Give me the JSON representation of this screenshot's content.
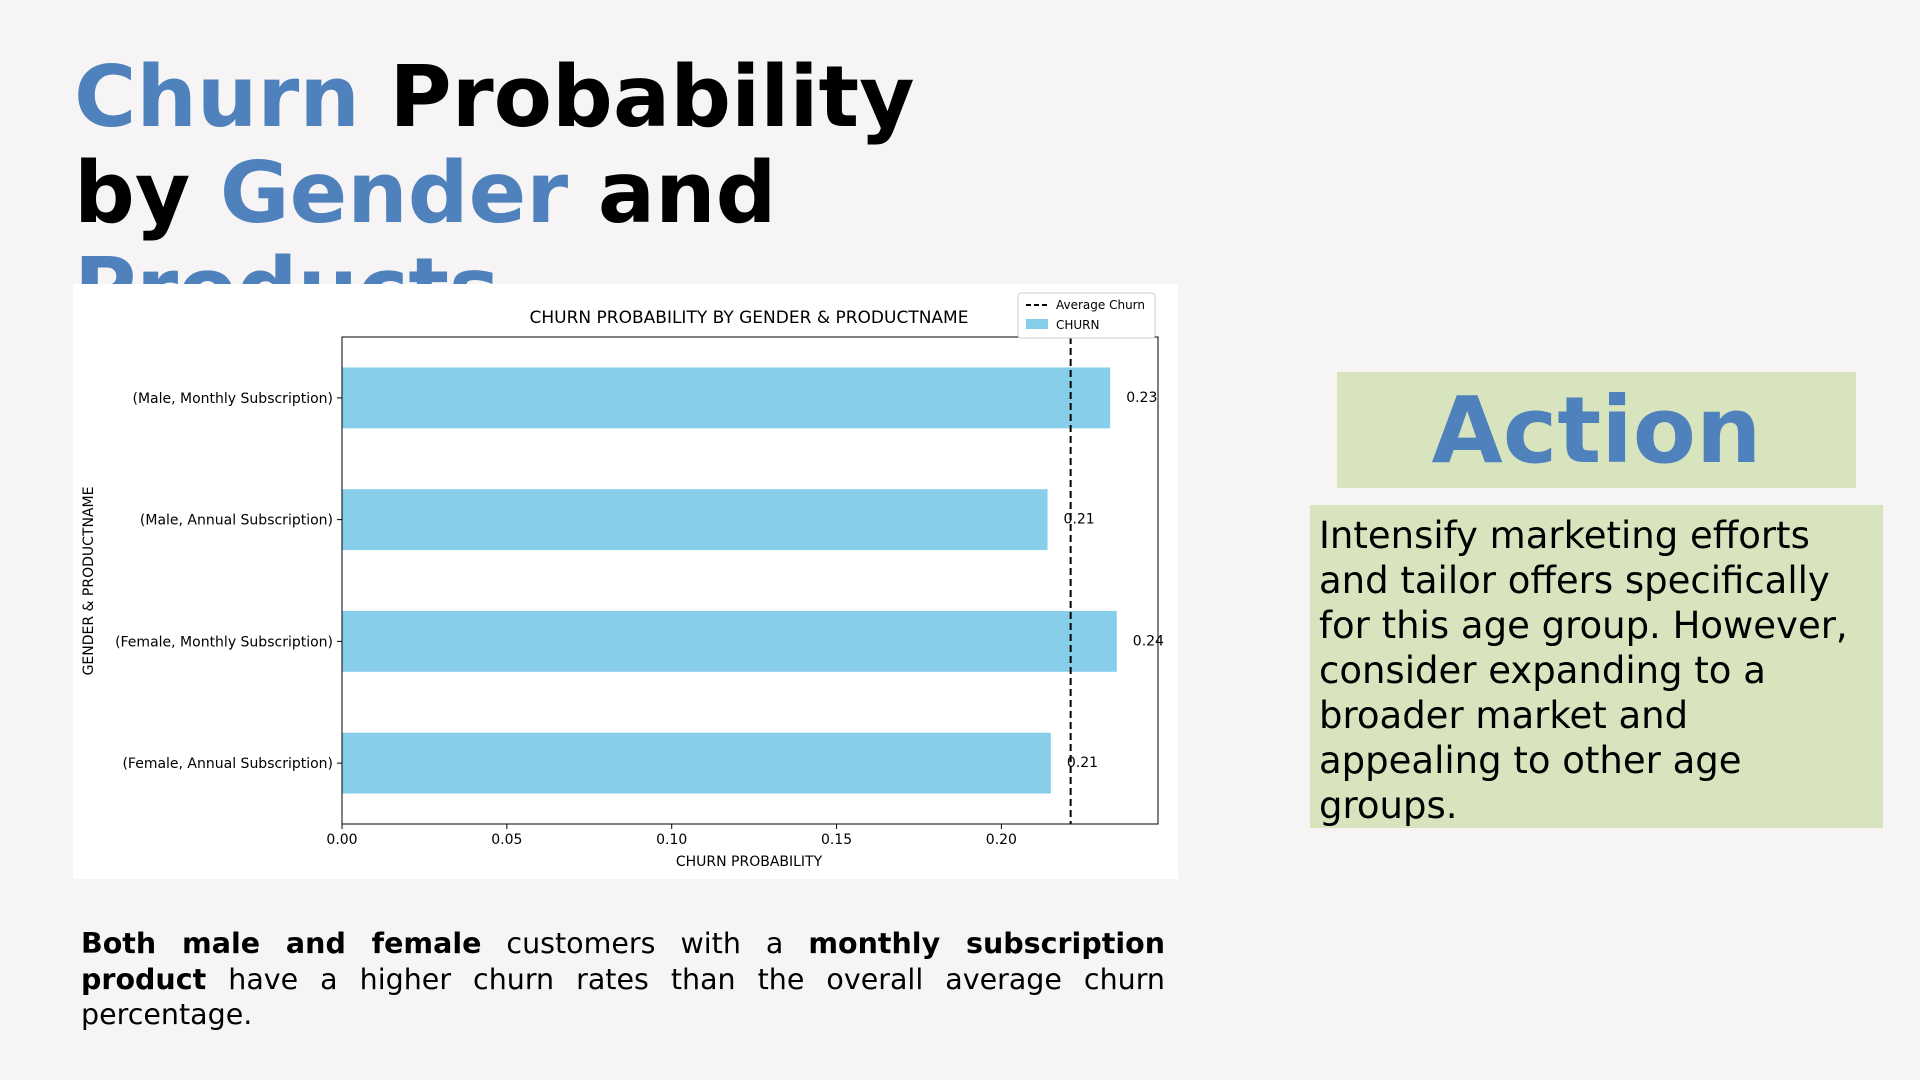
{
  "slide": {
    "title_parts": [
      {
        "text": "Churn",
        "accent": true
      },
      {
        "text": " Probability by ",
        "accent": false
      },
      {
        "text": "Gender",
        "accent": true
      },
      {
        "text": " and ",
        "accent": false
      },
      {
        "text": "Products",
        "accent": true
      }
    ],
    "accent_color": "#4f81bd",
    "summary_parts": [
      {
        "text": "Both male and female",
        "bold": true
      },
      {
        "text": " customers with a ",
        "bold": false
      },
      {
        "text": "monthly subscription product",
        "bold": true
      },
      {
        "text": " have a higher churn rates than the overall average churn percentage.",
        "bold": false
      }
    ],
    "action_title": "Action",
    "action_text": "Intensify marketing efforts and tailor offers specifically for this age group. However, consider expanding to a broader market and appealing to other age groups.",
    "action_bg_color": "#d7e4bd"
  },
  "chart_data": {
    "type": "bar",
    "orientation": "horizontal",
    "title": "CHURN PROBABILITY BY GENDER & PRODUCTNAME",
    "xlabel": "CHURN PROBABILITY",
    "ylabel": "GENDER & PRODUCTNAME",
    "categories": [
      "(Male, Monthly Subscription)",
      "(Male, Annual Subscription)",
      "(Female, Monthly Subscription)",
      "(Female, Annual Subscription)"
    ],
    "series": [
      {
        "name": "CHURN",
        "values": [
          0.233,
          0.214,
          0.235,
          0.215
        ],
        "color": "#87ceeb"
      }
    ],
    "data_labels": [
      "0.23",
      "0.21",
      "0.24",
      "0.21"
    ],
    "reference_line": {
      "name": "Average Churn",
      "value": 0.221,
      "style": "dashed",
      "color": "#000000"
    },
    "xlim": [
      0,
      0.2475
    ],
    "xticks": [
      0.0,
      0.05,
      0.1,
      0.15,
      0.2
    ],
    "xtick_labels": [
      "0.00",
      "0.05",
      "0.10",
      "0.15",
      "0.20"
    ],
    "grid": false,
    "legend_position": "top-right"
  }
}
